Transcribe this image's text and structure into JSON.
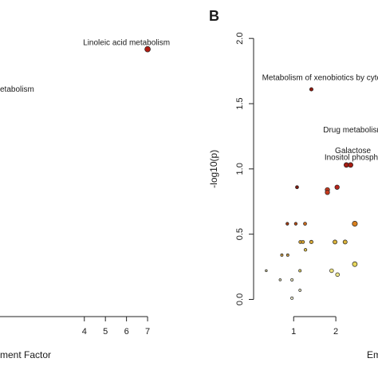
{
  "chart_data": [
    {
      "panel": "",
      "type": "scatter",
      "xlabel": "ment Factor",
      "ylabel": "",
      "xlim": [
        0,
        7.3
      ],
      "ylim": [
        0,
        2.05
      ],
      "x_ticks": [
        4,
        5,
        6,
        7
      ],
      "y_ticks": [],
      "grid": false,
      "points": [
        {
          "x": 7.0,
          "y": 1.92,
          "size": 3.5,
          "color": "#b11c12"
        }
      ],
      "annotations": [
        {
          "text": "Linoleic acid metabolism",
          "x": 6.0,
          "y": 1.95,
          "anchor": "middle"
        },
        {
          "text": "etabolism",
          "x": 0.0,
          "y": 1.6,
          "anchor": "start"
        }
      ]
    },
    {
      "panel": "B",
      "type": "scatter",
      "xlabel": "Em",
      "ylabel": "-log10(p)",
      "xlim": [
        0.05,
        3.0
      ],
      "ylim": [
        -0.04,
        2.05
      ],
      "x_ticks": [
        1,
        2
      ],
      "y_ticks": [
        "0.0",
        "0.5",
        "1.0",
        "1.5",
        "2.0"
      ],
      "grid": false,
      "points": [
        {
          "x": 1.42,
          "y": 1.61,
          "size": 2.2,
          "color": "#8e1a10"
        },
        {
          "x": 2.25,
          "y": 1.03,
          "size": 3.0,
          "color": "#a61c12"
        },
        {
          "x": 2.35,
          "y": 1.03,
          "size": 3.0,
          "color": "#a61c12"
        },
        {
          "x": 2.03,
          "y": 0.86,
          "size": 2.8,
          "color": "#b8241a"
        },
        {
          "x": 1.8,
          "y": 0.84,
          "size": 2.8,
          "color": "#c83a1e"
        },
        {
          "x": 1.8,
          "y": 0.82,
          "size": 2.8,
          "color": "#c83a1e"
        },
        {
          "x": 1.08,
          "y": 0.86,
          "size": 2.0,
          "color": "#7a1a0e"
        },
        {
          "x": 2.45,
          "y": 0.58,
          "size": 3.2,
          "color": "#d9801e"
        },
        {
          "x": 0.85,
          "y": 0.58,
          "size": 1.8,
          "color": "#a23a10"
        },
        {
          "x": 1.05,
          "y": 0.58,
          "size": 1.8,
          "color": "#b54a12"
        },
        {
          "x": 1.27,
          "y": 0.58,
          "size": 2.0,
          "color": "#c8681c"
        },
        {
          "x": 1.16,
          "y": 0.44,
          "size": 2.0,
          "color": "#d2a030"
        },
        {
          "x": 1.22,
          "y": 0.44,
          "size": 2.0,
          "color": "#d2a030"
        },
        {
          "x": 1.42,
          "y": 0.44,
          "size": 2.2,
          "color": "#d6a838"
        },
        {
          "x": 1.98,
          "y": 0.44,
          "size": 2.6,
          "color": "#d8b13a"
        },
        {
          "x": 2.22,
          "y": 0.44,
          "size": 2.6,
          "color": "#d8b13a"
        },
        {
          "x": 0.72,
          "y": 0.34,
          "size": 1.6,
          "color": "#c89a44"
        },
        {
          "x": 0.86,
          "y": 0.34,
          "size": 1.6,
          "color": "#c89a44"
        },
        {
          "x": 1.28,
          "y": 0.38,
          "size": 1.8,
          "color": "#dcbd4a"
        },
        {
          "x": 2.45,
          "y": 0.27,
          "size": 3.0,
          "color": "#e6d65c"
        },
        {
          "x": 1.15,
          "y": 0.22,
          "size": 1.6,
          "color": "#e2d266"
        },
        {
          "x": 1.9,
          "y": 0.22,
          "size": 2.4,
          "color": "#ece27c"
        },
        {
          "x": 2.04,
          "y": 0.19,
          "size": 2.4,
          "color": "#efe88a"
        },
        {
          "x": 0.35,
          "y": 0.22,
          "size": 1.3,
          "color": "#d8d2a0"
        },
        {
          "x": 0.68,
          "y": 0.15,
          "size": 1.4,
          "color": "#e0dcae"
        },
        {
          "x": 0.96,
          "y": 0.15,
          "size": 1.6,
          "color": "#e8e4b8"
        },
        {
          "x": 1.15,
          "y": 0.07,
          "size": 1.5,
          "color": "#ece8c0"
        },
        {
          "x": 0.96,
          "y": 0.01,
          "size": 1.6,
          "color": "#f2f0d2"
        }
      ],
      "annotations": [
        {
          "text": "Metabolism of xenobiotics by cytochrome",
          "x": 0.25,
          "y": 1.68,
          "anchor": "start"
        },
        {
          "text": "Drug metabolism",
          "x": 1.7,
          "y": 1.28,
          "anchor": "start"
        },
        {
          "text": "Galactose",
          "x": 1.98,
          "y": 1.12,
          "anchor": "start"
        },
        {
          "text": "Inositol phosphate m",
          "x": 1.73,
          "y": 1.07,
          "anchor": "start"
        }
      ]
    }
  ]
}
